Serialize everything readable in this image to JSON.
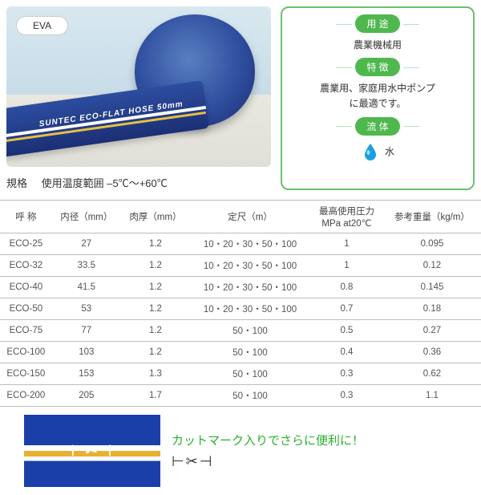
{
  "badge": {
    "material": "EVA"
  },
  "photo": {
    "tail_text": "SUNTEC ECO-FLAT HOSE  50mm"
  },
  "spec": {
    "label": "規格",
    "range": "使用温度範囲 –5℃～+60℃"
  },
  "sidebar": {
    "use_pill": "用 途",
    "use_text": "農業機械用",
    "feat_pill": "特 徴",
    "feat_text": "農業用、家庭用水中ポンプ\nに最適です。",
    "fluid_pill": "流 体",
    "fluid_text": "水",
    "drop_color": "#1aa0e0"
  },
  "table": {
    "headers": [
      "呼 称",
      "内径（mm）",
      "肉厚（mm）",
      "定尺（m）",
      "最高使用圧力\nMPa at20℃",
      "参考重量（kg/m）"
    ],
    "rows": [
      [
        "ECO-25",
        "27",
        "1.2",
        "10・20・30・50・100",
        "1",
        "0.095"
      ],
      [
        "ECO-32",
        "33.5",
        "1.2",
        "10・20・30・50・100",
        "1",
        "0.12"
      ],
      [
        "ECO-40",
        "41.5",
        "1.2",
        "10・20・30・50・100",
        "0.8",
        "0.145"
      ],
      [
        "ECO-50",
        "53",
        "1.2",
        "10・20・30・50・100",
        "0.7",
        "0.18"
      ],
      [
        "ECO-75",
        "77",
        "1.2",
        "50・100",
        "0.5",
        "0.27"
      ],
      [
        "ECO-100",
        "103",
        "1.2",
        "50・100",
        "0.4",
        "0.36"
      ],
      [
        "ECO-150",
        "153",
        "1.3",
        "50・100",
        "0.3",
        "0.62"
      ],
      [
        "ECO-200",
        "205",
        "1.7",
        "50・100",
        "0.3",
        "1.1"
      ]
    ]
  },
  "cut": {
    "note": "カットマーク入りでさらに便利に！",
    "symbol": "⊢✂⊣"
  }
}
